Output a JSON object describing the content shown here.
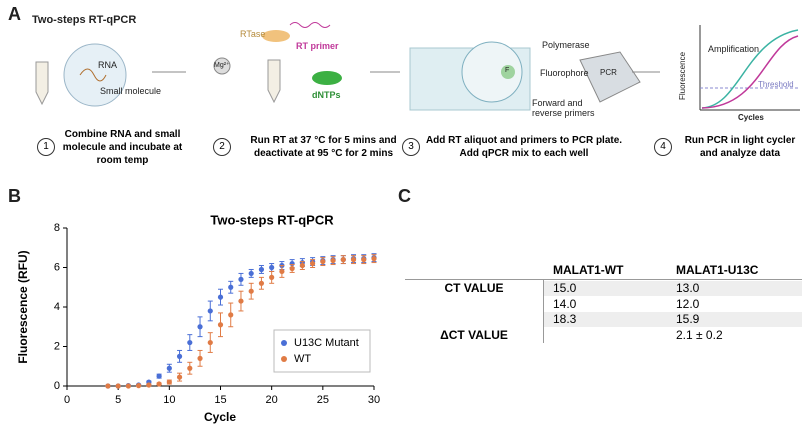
{
  "panel_labels": [
    "A",
    "B",
    "C"
  ],
  "workflow": {
    "title": "Two-steps RT-qPCR",
    "labels": {
      "rna": "RNA",
      "small_molecule": "Small molecule",
      "rtase": "RTase",
      "mg": "Mg²⁺",
      "rt_primer": "RT primer",
      "dntps": "dNTPs",
      "polymerase": "Polymerase",
      "fluorophore": "Fluorophore",
      "f": "F",
      "primers": "Forward and reverse primers",
      "pcr": "PCR",
      "amplification": "Amplification",
      "threshold": "Threshold",
      "fluorescence": "Fluorescence",
      "cycles": "Cycles"
    },
    "steps": [
      {
        "number": "1",
        "text": "Combine RNA and small molecule and incubate at room temp"
      },
      {
        "number": "2",
        "text": "Run RT at 37 °C for 5 mins and deactivate at 95 °C for 2 mins"
      },
      {
        "number": "3",
        "text": "Add RT aliquot and primers to PCR plate. Add qPCR mix to each well"
      },
      {
        "number": "4",
        "text": "Run PCR in light cycler and analyze data"
      }
    ]
  },
  "chart_data": {
    "type": "scatter",
    "title": "Two-steps RT-qPCR",
    "x_label": "Cycle",
    "y_label": "Fluorescence (RFU)",
    "x": [
      4,
      5,
      6,
      7,
      8,
      9,
      10,
      11,
      12,
      13,
      14,
      15,
      16,
      17,
      18,
      19,
      20,
      21,
      22,
      23,
      24,
      25,
      26,
      27,
      28,
      29,
      30
    ],
    "series": [
      {
        "name": "U13C Mutant",
        "color": "#4a6fd6",
        "values": [
          0,
          0,
          0.02,
          0.05,
          0.2,
          0.5,
          0.9,
          1.5,
          2.2,
          3.0,
          3.8,
          4.5,
          5.0,
          5.4,
          5.7,
          5.9,
          6.0,
          6.1,
          6.2,
          6.25,
          6.3,
          6.35,
          6.4,
          6.4,
          6.45,
          6.45,
          6.5
        ],
        "errors": [
          0,
          0,
          0.02,
          0.03,
          0.05,
          0.1,
          0.2,
          0.3,
          0.4,
          0.5,
          0.5,
          0.4,
          0.3,
          0.3,
          0.2,
          0.2,
          0.2,
          0.2,
          0.2,
          0.2,
          0.2,
          0.2,
          0.2,
          0.2,
          0.2,
          0.2,
          0.2
        ]
      },
      {
        "name": "WT",
        "color": "#e07b45",
        "values": [
          0,
          0,
          0,
          0.02,
          0.05,
          0.1,
          0.2,
          0.45,
          0.9,
          1.4,
          2.2,
          3.1,
          3.6,
          4.3,
          4.8,
          5.2,
          5.5,
          5.8,
          5.95,
          6.1,
          6.2,
          6.3,
          6.35,
          6.4,
          6.4,
          6.4,
          6.45
        ],
        "errors": [
          0,
          0,
          0,
          0.02,
          0.03,
          0.05,
          0.1,
          0.2,
          0.3,
          0.4,
          0.5,
          0.6,
          0.6,
          0.5,
          0.4,
          0.3,
          0.3,
          0.3,
          0.2,
          0.2,
          0.2,
          0.2,
          0.2,
          0.2,
          0.2,
          0.2,
          0.2
        ]
      }
    ],
    "xlim": [
      0,
      30
    ],
    "xticks": [
      0,
      5,
      10,
      15,
      20,
      25,
      30
    ],
    "ylim": [
      0,
      8
    ],
    "yticks": [
      0,
      2,
      4,
      6,
      8
    ],
    "legend": "lower right"
  },
  "table": {
    "header": {
      "wt": "MALAT1-WT",
      "u13c": "MALAT1-U13C"
    },
    "rows": [
      {
        "label": "CT VALUE",
        "wt": "15.0",
        "u13c": "13.0"
      },
      {
        "wt": "14.0",
        "u13c": "12.0"
      },
      {
        "wt": "18.3",
        "u13c": "15.9"
      },
      {
        "label": "ΔCT VALUE",
        "u13c": "2.1 ± 0.2"
      }
    ]
  }
}
